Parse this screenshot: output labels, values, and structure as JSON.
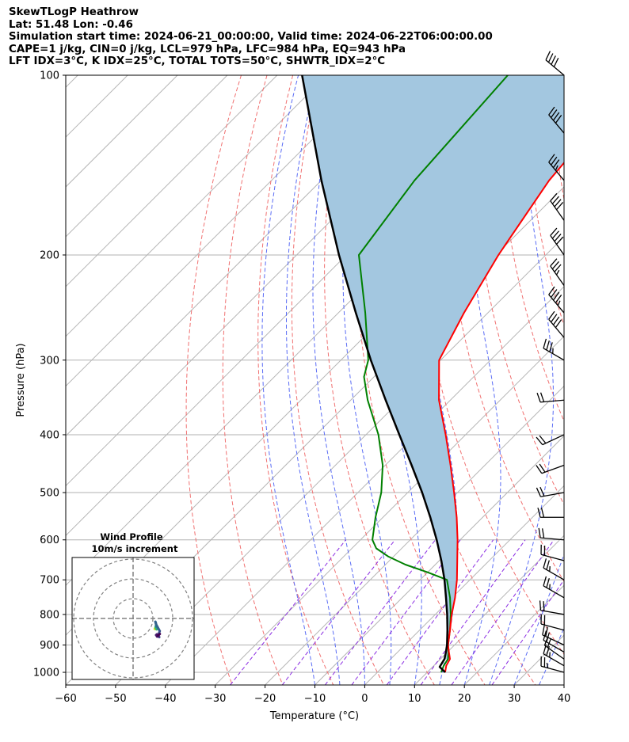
{
  "header": {
    "title": "SkewTLogP Heathrow",
    "location": "Lat: 51.48   Lon: -0.46",
    "times": "Simulation start time: 2024-06-21_00:00:00, Valid time: 2024-06-22T06:00:00.00",
    "indices1": "CAPE=1 j/kg, CIN=0 j/kg, LCL=979 hPa, LFC=984 hPa, EQ=943 hPa",
    "indices2": "LFT IDX=3°C, K IDX=25°C, TOTAL TOTS=50°C, SHWTR_IDX=2°C"
  },
  "chart_data": {
    "type": "line",
    "title": "SkewTLogP Heathrow",
    "xlabel": "Temperature (°C)",
    "ylabel": "Pressure (hPa)",
    "xlim": [
      -60,
      40
    ],
    "ylim": [
      1050,
      100
    ],
    "y_scale": "log",
    "x_ticks": [
      -60,
      -50,
      -40,
      -30,
      -20,
      -10,
      0,
      10,
      20,
      30,
      40
    ],
    "y_ticks": [
      100,
      200,
      300,
      400,
      500,
      600,
      700,
      800,
      900,
      1000
    ],
    "grid": true,
    "series": [
      {
        "role": "temperature",
        "color": "#ff0000",
        "p": [
          1000,
          975,
          950,
          925,
          900,
          850,
          800,
          750,
          700,
          650,
          600,
          550,
          500,
          450,
          400,
          350,
          300,
          250,
          200,
          150,
          100
        ],
        "t": [
          13.6,
          12.5,
          11.9,
          10.3,
          8.7,
          6.1,
          3.3,
          0.6,
          -2.6,
          -6.4,
          -10.5,
          -15.2,
          -20.7,
          -26.9,
          -34.0,
          -42.3,
          -50.3,
          -54.8,
          -59.5,
          -64.3,
          -67.5
        ]
      },
      {
        "role": "dewpoint",
        "color": "#008000",
        "p": [
          1000,
          975,
          950,
          925,
          900,
          850,
          800,
          750,
          700,
          680,
          660,
          640,
          620,
          600,
          550,
          500,
          450,
          400,
          350,
          320,
          300,
          250,
          200,
          150,
          100
        ],
        "t": [
          12.8,
          12.0,
          11.5,
          10.2,
          8.7,
          6.1,
          3.1,
          -0.4,
          -4.6,
          -10.0,
          -16.0,
          -21.0,
          -25.1,
          -27.6,
          -31.5,
          -35.3,
          -40.5,
          -47.5,
          -56.6,
          -62.0,
          -64.5,
          -74.6,
          -87.5,
          -91.3,
          -93.7
        ]
      },
      {
        "role": "parcel",
        "color": "#000000",
        "p": [
          1000,
          979,
          950,
          925,
          900,
          850,
          800,
          750,
          700,
          650,
          600,
          550,
          500,
          450,
          400,
          350,
          300,
          250,
          200,
          150,
          100
        ],
        "t": [
          13.6,
          11.4,
          10.8,
          9.7,
          8.5,
          5.6,
          2.4,
          -1.2,
          -5.1,
          -9.6,
          -14.7,
          -20.5,
          -27.1,
          -34.7,
          -43.3,
          -53.0,
          -64.0,
          -76.5,
          -91.5,
          -110.0,
          -135.0
        ]
      }
    ],
    "wind_barbs": {
      "p": [
        100,
        125,
        150,
        175,
        200,
        225,
        250,
        275,
        300,
        350,
        400,
        450,
        500,
        550,
        600,
        650,
        700,
        750,
        800,
        850,
        900,
        925,
        950,
        975,
        1000
      ],
      "speed_kt": [
        40,
        40,
        35,
        40,
        40,
        35,
        45,
        40,
        35,
        20,
        20,
        20,
        20,
        20,
        20,
        20,
        25,
        25,
        20,
        20,
        20,
        20,
        20,
        25,
        25
      ],
      "direction_deg": [
        310,
        320,
        320,
        325,
        325,
        325,
        320,
        320,
        300,
        265,
        245,
        250,
        260,
        270,
        275,
        285,
        300,
        300,
        280,
        285,
        295,
        300,
        305,
        300,
        285
      ]
    }
  },
  "inset": {
    "title1": "Wind Profile",
    "title2": "10m/s increment"
  },
  "colors": {
    "temperature": "#ff0000",
    "dewpoint": "#008000",
    "parcel": "#000000",
    "cape_fill": "#a3c7e0",
    "dry_adiabat": "#f07070",
    "moist_adiabat": "#5a6cf5",
    "mixing_ratio": "#8a2be2",
    "isotherm": "#b5b5b5"
  }
}
